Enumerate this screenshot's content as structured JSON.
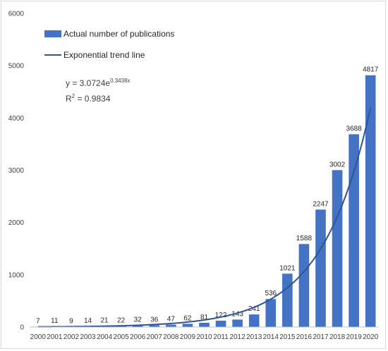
{
  "chart_data": {
    "type": "bar",
    "categories": [
      "2000",
      "2001",
      "2002",
      "2003",
      "2004",
      "2005",
      "2006",
      "2007",
      "2008",
      "2009",
      "2010",
      "2011",
      "2012",
      "2013",
      "2014",
      "2015",
      "2016",
      "2017",
      "2018",
      "2019",
      "2020"
    ],
    "series": [
      {
        "name": "Actual number of publications",
        "values": [
          7,
          11,
          9,
          14,
          21,
          22,
          32,
          36,
          47,
          62,
          81,
          122,
          143,
          241,
          536,
          1021,
          1588,
          2247,
          3002,
          3688,
          4817
        ],
        "color": "#4472c4"
      }
    ],
    "trendline": {
      "name": "Exponential trend line",
      "type": "exponential",
      "a": 3.0724,
      "b": 0.3438,
      "color": "#2f5597"
    },
    "equation_prefix": "y = 3.0724e",
    "equation_exponent": "0.3438x",
    "r2_prefix": "R",
    "r2_power": "2",
    "r2_value": " = 0.9834",
    "yticks": [
      0,
      1000,
      2000,
      3000,
      4000,
      5000,
      6000
    ],
    "ylim": [
      0,
      6000
    ],
    "legend_position": "top-left",
    "grid": false,
    "title": "",
    "xlabel": "",
    "ylabel": ""
  }
}
